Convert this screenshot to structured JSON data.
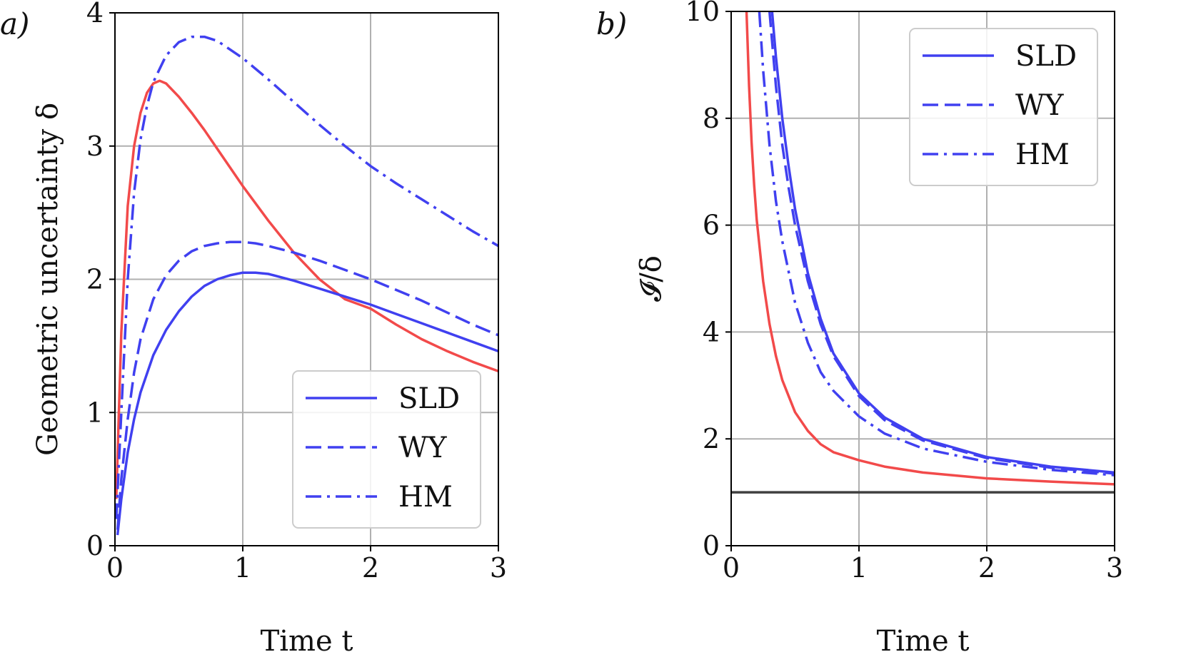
{
  "colors": {
    "red": "#f24a4a",
    "blue": "#4040f0",
    "grid": "#b0b0b0",
    "reference": "#404040",
    "axes": "#000000"
  },
  "chart_data": [
    {
      "panel_label": "a)",
      "type": "line",
      "xlabel": "Time t",
      "ylabel": "Geometric uncertainty δ",
      "xlim": [
        0,
        3
      ],
      "ylim": [
        0,
        4
      ],
      "xticks": [
        0,
        1,
        2,
        3
      ],
      "yticks": [
        0,
        1,
        2,
        3,
        4
      ],
      "grid": true,
      "legend": {
        "position": "lower right",
        "entries": [
          {
            "label": "SLD",
            "style": "solid",
            "color": "#4040f0"
          },
          {
            "label": "WY",
            "style": "dashed",
            "color": "#4040f0"
          },
          {
            "label": "HM",
            "style": "dashdot",
            "color": "#4040f0"
          }
        ]
      },
      "series": [
        {
          "style": "solid",
          "color": "#f24a4a",
          "x": [
            0.01,
            0.05,
            0.1,
            0.15,
            0.2,
            0.25,
            0.3,
            0.35,
            0.4,
            0.5,
            0.6,
            0.7,
            0.8,
            0.9,
            1.0,
            1.2,
            1.4,
            1.6,
            1.8,
            2.0,
            2.2,
            2.4,
            2.6,
            2.8,
            3.0
          ],
          "y": [
            0.35,
            1.6,
            2.55,
            3.0,
            3.25,
            3.4,
            3.47,
            3.49,
            3.47,
            3.37,
            3.25,
            3.12,
            2.98,
            2.84,
            2.7,
            2.44,
            2.2,
            2.0,
            1.85,
            1.78,
            1.66,
            1.55,
            1.46,
            1.38,
            1.31
          ]
        },
        {
          "name": "SLD",
          "style": "solid",
          "color": "#4040f0",
          "x": [
            0.02,
            0.05,
            0.1,
            0.15,
            0.2,
            0.3,
            0.4,
            0.5,
            0.6,
            0.7,
            0.8,
            0.9,
            1.0,
            1.1,
            1.2,
            1.4,
            1.6,
            1.8,
            2.0,
            2.2,
            2.4,
            2.6,
            2.8,
            3.0
          ],
          "y": [
            0.08,
            0.35,
            0.7,
            0.95,
            1.15,
            1.43,
            1.62,
            1.76,
            1.87,
            1.95,
            2.0,
            2.03,
            2.05,
            2.05,
            2.04,
            1.99,
            1.93,
            1.87,
            1.81,
            1.74,
            1.67,
            1.6,
            1.53,
            1.46
          ]
        },
        {
          "name": "WY",
          "style": "dashed",
          "color": "#4040f0",
          "x": [
            0.02,
            0.05,
            0.1,
            0.15,
            0.2,
            0.3,
            0.4,
            0.5,
            0.6,
            0.7,
            0.8,
            0.9,
            1.0,
            1.1,
            1.2,
            1.4,
            1.6,
            1.8,
            2.0,
            2.2,
            2.4,
            2.6,
            2.8,
            3.0
          ],
          "y": [
            0.12,
            0.5,
            0.95,
            1.3,
            1.55,
            1.85,
            2.03,
            2.14,
            2.21,
            2.25,
            2.27,
            2.28,
            2.28,
            2.27,
            2.25,
            2.2,
            2.14,
            2.07,
            2.0,
            1.92,
            1.84,
            1.75,
            1.66,
            1.58
          ]
        },
        {
          "name": "HM",
          "style": "dashdot",
          "color": "#4040f0",
          "x": [
            0.01,
            0.05,
            0.1,
            0.15,
            0.2,
            0.25,
            0.3,
            0.4,
            0.5,
            0.6,
            0.7,
            0.8,
            1.0,
            1.2,
            1.4,
            1.6,
            1.8,
            2.0,
            2.2,
            2.4,
            2.6,
            2.8,
            3.0
          ],
          "y": [
            0.2,
            1.0,
            2.0,
            2.65,
            3.05,
            3.3,
            3.48,
            3.68,
            3.78,
            3.82,
            3.82,
            3.79,
            3.66,
            3.5,
            3.33,
            3.16,
            3.0,
            2.85,
            2.72,
            2.6,
            2.48,
            2.36,
            2.25
          ]
        }
      ]
    },
    {
      "panel_label": "b)",
      "type": "line",
      "xlabel": "Time t",
      "ylabel": "𝓘/δ",
      "xlim": [
        0,
        3
      ],
      "ylim": [
        0,
        10
      ],
      "xticks": [
        0,
        1,
        2,
        3
      ],
      "yticks": [
        0,
        2,
        4,
        6,
        8,
        10
      ],
      "grid": true,
      "reference_line": {
        "y": 1,
        "color": "#404040"
      },
      "legend": {
        "position": "upper right",
        "entries": [
          {
            "label": "SLD",
            "style": "solid",
            "color": "#4040f0"
          },
          {
            "label": "WY",
            "style": "dashed",
            "color": "#4040f0"
          },
          {
            "label": "HM",
            "style": "dashdot",
            "color": "#4040f0"
          }
        ]
      },
      "series": [
        {
          "style": "solid",
          "color": "#f24a4a",
          "x": [
            0.12,
            0.14,
            0.16,
            0.18,
            0.2,
            0.25,
            0.3,
            0.35,
            0.4,
            0.5,
            0.6,
            0.7,
            0.8,
            1.0,
            1.2,
            1.5,
            2.0,
            2.5,
            3.0
          ],
          "y": [
            10.0,
            8.6,
            7.55,
            6.75,
            6.1,
            4.95,
            4.15,
            3.55,
            3.1,
            2.5,
            2.15,
            1.9,
            1.75,
            1.6,
            1.48,
            1.37,
            1.26,
            1.2,
            1.15
          ]
        },
        {
          "name": "SLD",
          "style": "solid",
          "color": "#4040f0",
          "x": [
            0.32,
            0.35,
            0.4,
            0.45,
            0.5,
            0.6,
            0.7,
            0.8,
            1.0,
            1.2,
            1.5,
            2.0,
            2.5,
            3.0
          ],
          "y": [
            10.0,
            9.15,
            8.0,
            7.1,
            6.3,
            5.1,
            4.25,
            3.6,
            2.85,
            2.4,
            2.0,
            1.66,
            1.48,
            1.37
          ]
        },
        {
          "name": "WY",
          "style": "dashed",
          "color": "#4040f0",
          "x": [
            0.3,
            0.35,
            0.4,
            0.45,
            0.5,
            0.6,
            0.7,
            0.8,
            1.0,
            1.2,
            1.5,
            2.0,
            2.5,
            3.0
          ],
          "y": [
            10.0,
            8.6,
            7.5,
            6.7,
            6.0,
            4.95,
            4.15,
            3.55,
            2.8,
            2.35,
            1.97,
            1.64,
            1.46,
            1.35
          ]
        },
        {
          "name": "HM",
          "style": "dashdot",
          "color": "#4040f0",
          "x": [
            0.22,
            0.25,
            0.3,
            0.35,
            0.4,
            0.5,
            0.6,
            0.7,
            0.8,
            1.0,
            1.2,
            1.5,
            2.0,
            2.5,
            3.0
          ],
          "y": [
            10.0,
            8.9,
            7.5,
            6.45,
            5.7,
            4.55,
            3.8,
            3.25,
            2.9,
            2.42,
            2.1,
            1.82,
            1.57,
            1.42,
            1.32
          ]
        }
      ]
    }
  ]
}
